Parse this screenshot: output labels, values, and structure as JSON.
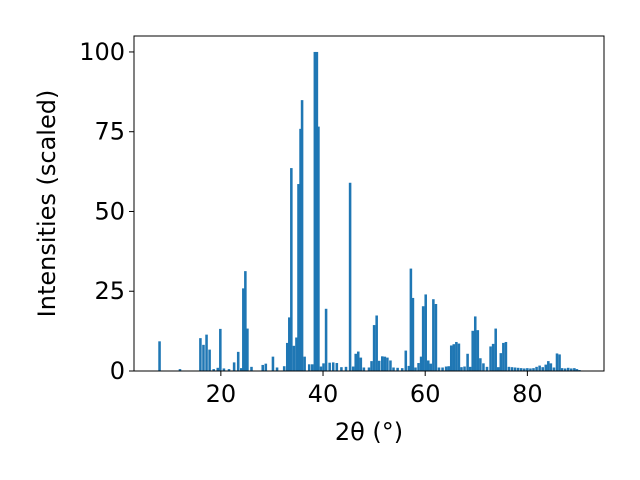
{
  "chart_data": {
    "type": "bar",
    "xlabel": "2θ (°)",
    "ylabel": "Intensities (scaled)",
    "xlim": [
      3,
      95
    ],
    "ylim": [
      0,
      105
    ],
    "xticks": [
      20,
      40,
      60,
      80
    ],
    "yticks": [
      0,
      25,
      50,
      75,
      100
    ],
    "bar_width": 0.5,
    "bar_color": "#1f77b4",
    "grid": false,
    "bars": [
      {
        "x": 8.0,
        "y": 9.3
      },
      {
        "x": 12.0,
        "y": 0.6
      },
      {
        "x": 16.0,
        "y": 10.3
      },
      {
        "x": 16.6,
        "y": 8.2
      },
      {
        "x": 17.2,
        "y": 11.4
      },
      {
        "x": 17.8,
        "y": 6.7
      },
      {
        "x": 18.6,
        "y": 0.6
      },
      {
        "x": 19.4,
        "y": 1.0
      },
      {
        "x": 19.9,
        "y": 13.2
      },
      {
        "x": 20.6,
        "y": 0.8
      },
      {
        "x": 21.6,
        "y": 0.6
      },
      {
        "x": 22.6,
        "y": 2.7
      },
      {
        "x": 23.4,
        "y": 6.0
      },
      {
        "x": 24.0,
        "y": 0.9
      },
      {
        "x": 24.4,
        "y": 25.9
      },
      {
        "x": 24.8,
        "y": 31.3
      },
      {
        "x": 25.2,
        "y": 13.3
      },
      {
        "x": 26.0,
        "y": 1.3
      },
      {
        "x": 28.2,
        "y": 1.9
      },
      {
        "x": 28.8,
        "y": 2.3
      },
      {
        "x": 30.2,
        "y": 4.5
      },
      {
        "x": 31.0,
        "y": 1.1
      },
      {
        "x": 32.4,
        "y": 1.5
      },
      {
        "x": 33.0,
        "y": 8.8
      },
      {
        "x": 33.4,
        "y": 16.8
      },
      {
        "x": 33.8,
        "y": 63.6
      },
      {
        "x": 34.3,
        "y": 7.9
      },
      {
        "x": 34.8,
        "y": 10.5
      },
      {
        "x": 35.2,
        "y": 58.6
      },
      {
        "x": 35.6,
        "y": 75.9
      },
      {
        "x": 35.9,
        "y": 84.9
      },
      {
        "x": 36.4,
        "y": 4.5
      },
      {
        "x": 37.3,
        "y": 2.1
      },
      {
        "x": 37.9,
        "y": 2.1
      },
      {
        "x": 38.4,
        "y": 100.0
      },
      {
        "x": 38.8,
        "y": 100.0
      },
      {
        "x": 39.1,
        "y": 76.6
      },
      {
        "x": 39.6,
        "y": 1.4
      },
      {
        "x": 40.1,
        "y": 2.4
      },
      {
        "x": 40.6,
        "y": 19.5
      },
      {
        "x": 41.3,
        "y": 2.6
      },
      {
        "x": 42.0,
        "y": 2.7
      },
      {
        "x": 42.7,
        "y": 2.5
      },
      {
        "x": 43.6,
        "y": 1.2
      },
      {
        "x": 44.5,
        "y": 1.3
      },
      {
        "x": 45.3,
        "y": 59.0
      },
      {
        "x": 45.9,
        "y": 1.4
      },
      {
        "x": 46.4,
        "y": 5.4
      },
      {
        "x": 46.9,
        "y": 6.1
      },
      {
        "x": 47.4,
        "y": 4.2
      },
      {
        "x": 48.0,
        "y": 1.1
      },
      {
        "x": 49.0,
        "y": 1.1
      },
      {
        "x": 49.5,
        "y": 3.1
      },
      {
        "x": 50.0,
        "y": 14.4
      },
      {
        "x": 50.5,
        "y": 17.4
      },
      {
        "x": 51.0,
        "y": 3.2
      },
      {
        "x": 51.6,
        "y": 4.6
      },
      {
        "x": 52.1,
        "y": 4.5
      },
      {
        "x": 52.6,
        "y": 4.2
      },
      {
        "x": 53.2,
        "y": 3.3
      },
      {
        "x": 53.8,
        "y": 1.1
      },
      {
        "x": 54.6,
        "y": 1.0
      },
      {
        "x": 55.5,
        "y": 0.9
      },
      {
        "x": 56.2,
        "y": 6.4
      },
      {
        "x": 56.8,
        "y": 1.6
      },
      {
        "x": 57.2,
        "y": 32.1
      },
      {
        "x": 57.6,
        "y": 22.9
      },
      {
        "x": 58.1,
        "y": 1.1
      },
      {
        "x": 58.7,
        "y": 2.5
      },
      {
        "x": 59.2,
        "y": 4.5
      },
      {
        "x": 59.6,
        "y": 20.3
      },
      {
        "x": 60.1,
        "y": 24.0
      },
      {
        "x": 60.6,
        "y": 3.3
      },
      {
        "x": 61.1,
        "y": 2.3
      },
      {
        "x": 61.6,
        "y": 22.5
      },
      {
        "x": 62.1,
        "y": 21.0
      },
      {
        "x": 62.7,
        "y": 1.1
      },
      {
        "x": 63.4,
        "y": 1.1
      },
      {
        "x": 64.1,
        "y": 1.4
      },
      {
        "x": 64.6,
        "y": 1.5
      },
      {
        "x": 65.1,
        "y": 8.0
      },
      {
        "x": 65.6,
        "y": 8.4
      },
      {
        "x": 66.1,
        "y": 9.1
      },
      {
        "x": 66.6,
        "y": 8.6
      },
      {
        "x": 67.1,
        "y": 1.2
      },
      {
        "x": 67.7,
        "y": 1.4
      },
      {
        "x": 68.3,
        "y": 5.4
      },
      {
        "x": 68.8,
        "y": 1.3
      },
      {
        "x": 69.3,
        "y": 12.6
      },
      {
        "x": 69.8,
        "y": 17.1
      },
      {
        "x": 70.3,
        "y": 12.8
      },
      {
        "x": 70.8,
        "y": 4.0
      },
      {
        "x": 71.4,
        "y": 2.4
      },
      {
        "x": 72.1,
        "y": 1.3
      },
      {
        "x": 72.8,
        "y": 7.7
      },
      {
        "x": 73.3,
        "y": 8.5
      },
      {
        "x": 73.8,
        "y": 13.3
      },
      {
        "x": 74.3,
        "y": 1.2
      },
      {
        "x": 74.8,
        "y": 5.6
      },
      {
        "x": 75.3,
        "y": 8.8
      },
      {
        "x": 75.8,
        "y": 9.1
      },
      {
        "x": 76.4,
        "y": 1.3
      },
      {
        "x": 77.0,
        "y": 1.2
      },
      {
        "x": 77.6,
        "y": 1.1
      },
      {
        "x": 78.2,
        "y": 1.0
      },
      {
        "x": 78.8,
        "y": 0.9
      },
      {
        "x": 79.4,
        "y": 0.8
      },
      {
        "x": 80.0,
        "y": 0.9
      },
      {
        "x": 80.6,
        "y": 0.8
      },
      {
        "x": 81.2,
        "y": 0.9
      },
      {
        "x": 81.8,
        "y": 1.3
      },
      {
        "x": 82.4,
        "y": 1.7
      },
      {
        "x": 83.0,
        "y": 1.2
      },
      {
        "x": 83.6,
        "y": 2.0
      },
      {
        "x": 84.1,
        "y": 3.1
      },
      {
        "x": 84.6,
        "y": 2.4
      },
      {
        "x": 85.2,
        "y": 1.1
      },
      {
        "x": 85.8,
        "y": 5.5
      },
      {
        "x": 86.3,
        "y": 5.2
      },
      {
        "x": 86.8,
        "y": 0.9
      },
      {
        "x": 87.4,
        "y": 0.8
      },
      {
        "x": 88.0,
        "y": 1.0
      },
      {
        "x": 88.6,
        "y": 0.8
      },
      {
        "x": 89.2,
        "y": 0.9
      },
      {
        "x": 89.7,
        "y": 0.6
      },
      {
        "x": 90.2,
        "y": 0.3
      }
    ]
  }
}
